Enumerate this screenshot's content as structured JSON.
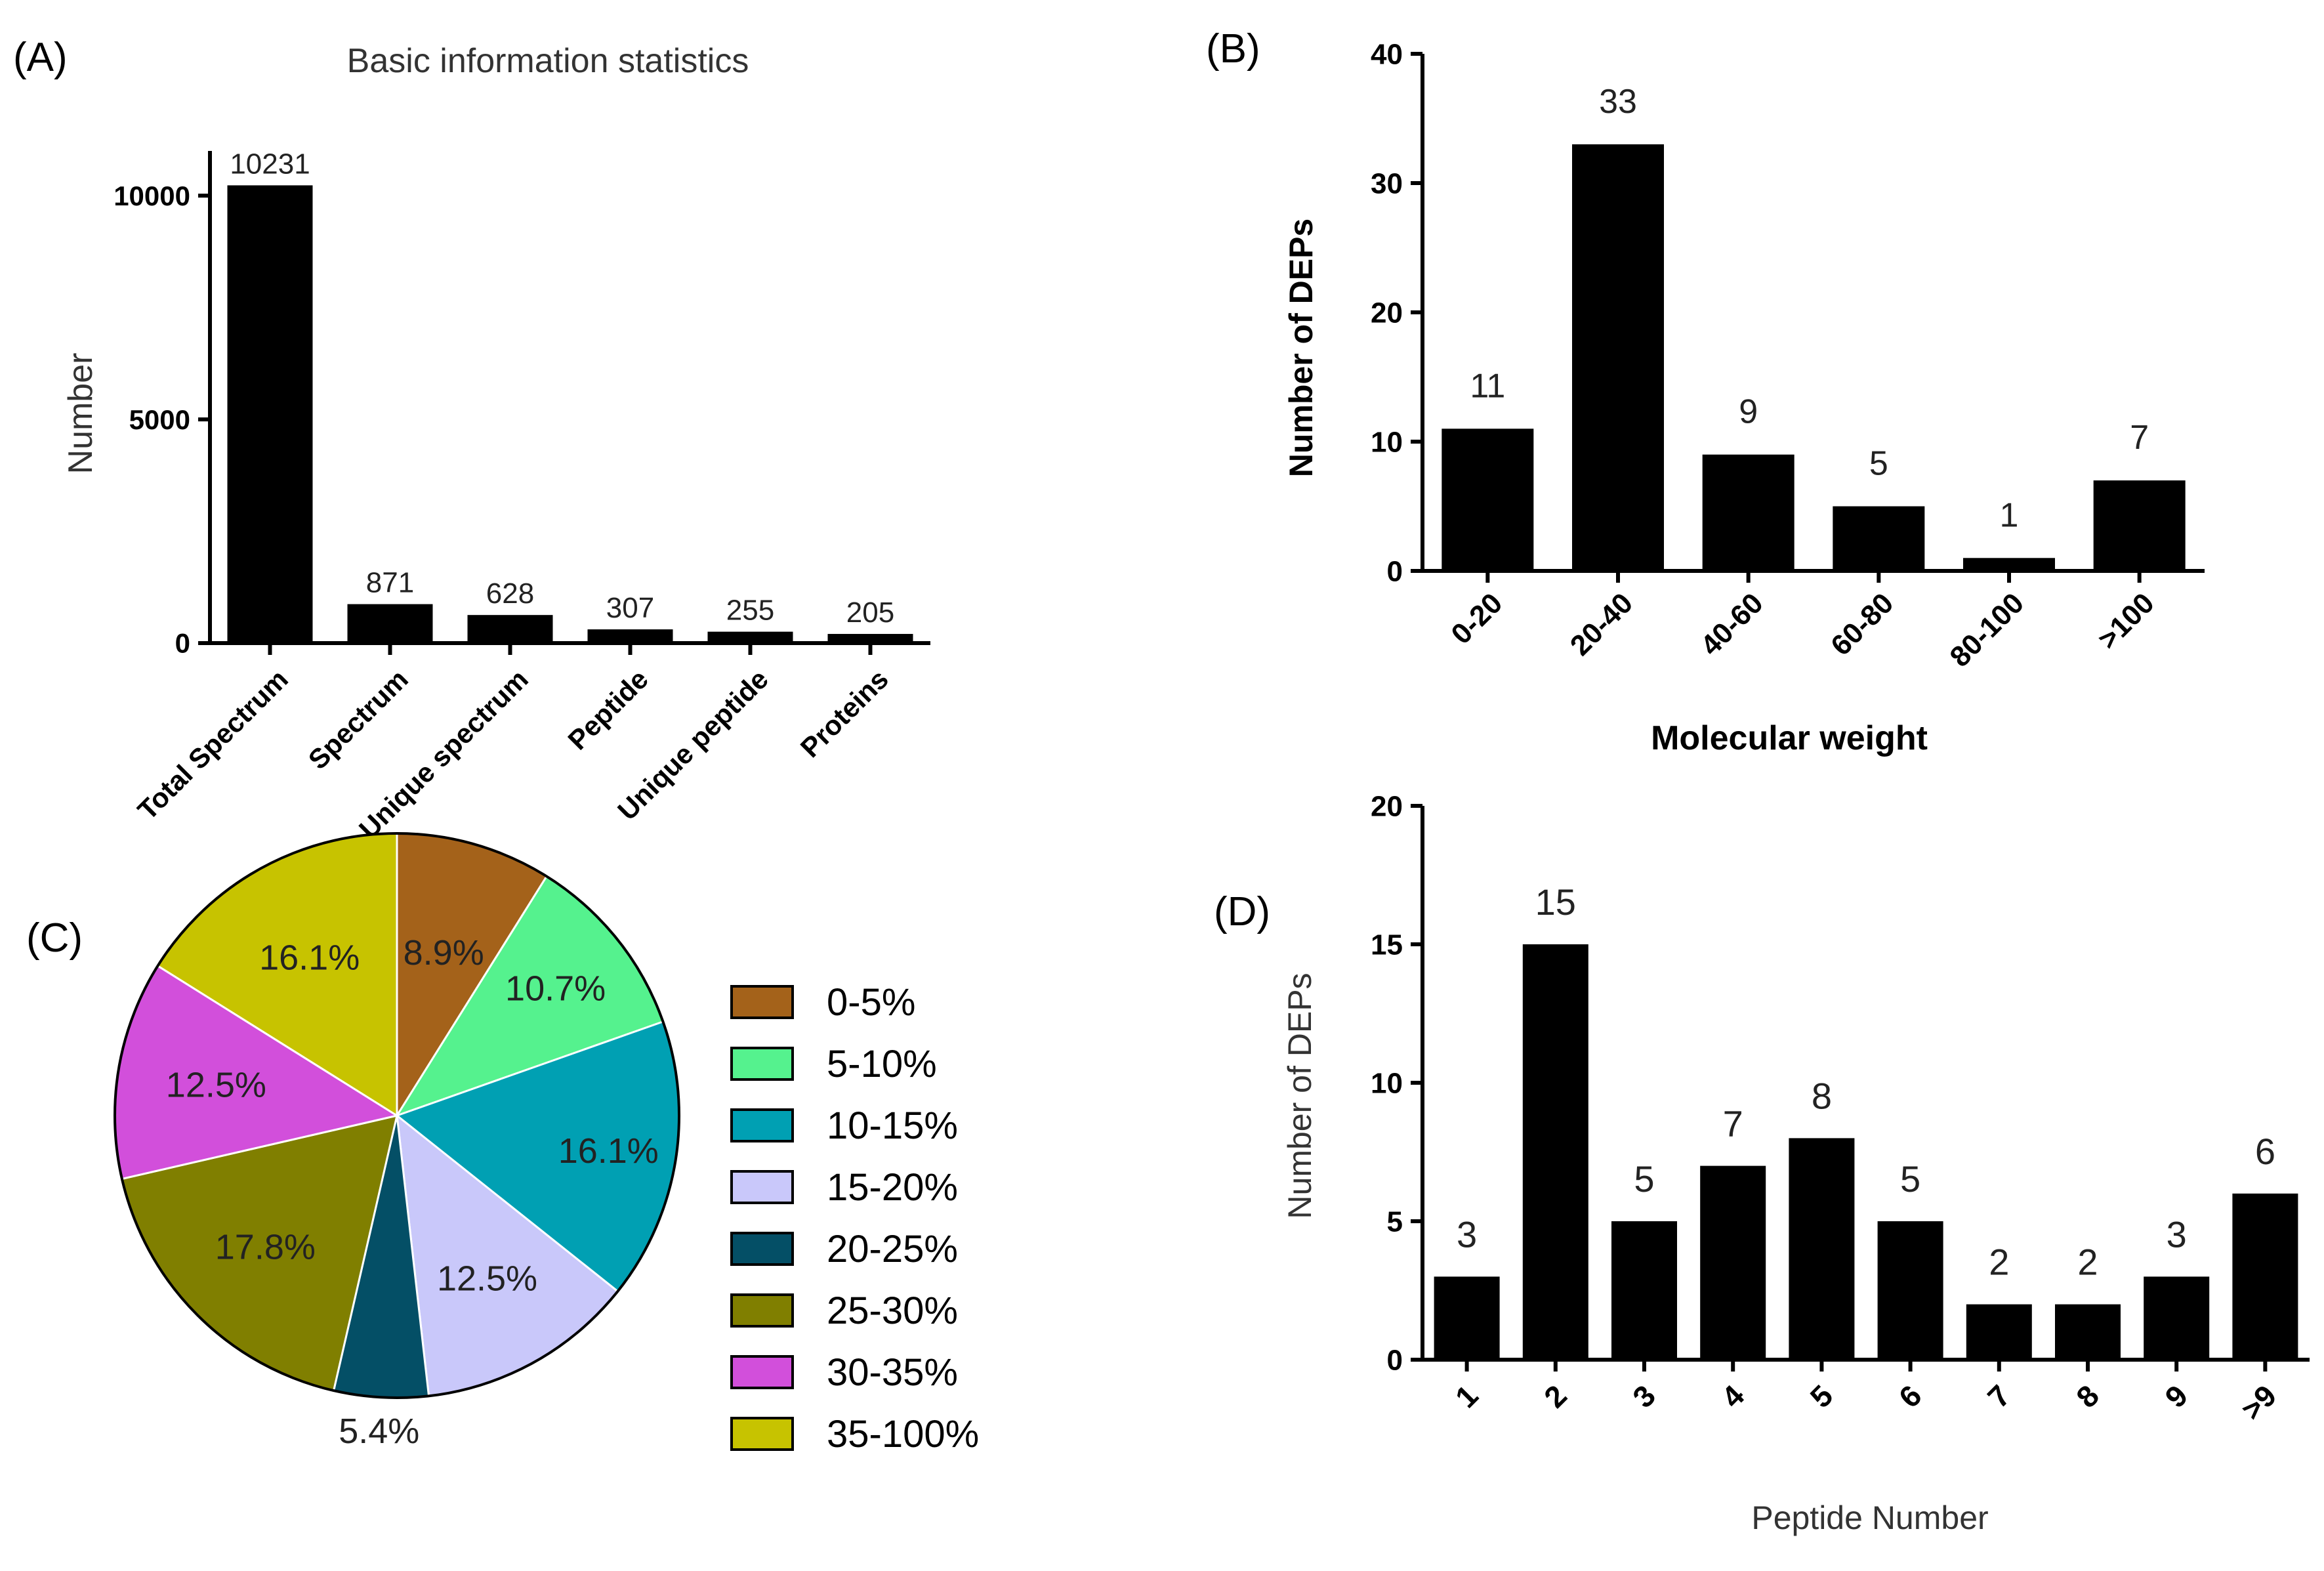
{
  "panels": {
    "a": {
      "label": "(A)"
    },
    "b": {
      "label": "(B)"
    },
    "c": {
      "label": "(C)"
    },
    "d": {
      "label": "(D)"
    }
  },
  "chart_data": [
    {
      "id": "a",
      "type": "bar",
      "title": "Basic information statistics",
      "xlabel": "",
      "ylabel": "Number",
      "categories": [
        "Total Spectrum",
        "Spectrum",
        "Unique spectrum",
        "Peptide",
        "Unique peptide",
        "Proteins"
      ],
      "values": [
        10231,
        871,
        628,
        307,
        255,
        205
      ],
      "data_labels": [
        "10231",
        "871",
        "628",
        "307",
        "255",
        "205"
      ],
      "ylim": [
        0,
        11000
      ],
      "yticks": [
        0,
        5000,
        10000
      ],
      "ytick_labels": [
        "0",
        "5000",
        "10000"
      ]
    },
    {
      "id": "b",
      "type": "bar",
      "title": "",
      "xlabel": "Molecular weight",
      "ylabel": "Number of DEPs",
      "categories": [
        "0-20",
        "20-40",
        "40-60",
        "60-80",
        "80-100",
        ">100"
      ],
      "values": [
        11,
        33,
        9,
        5,
        1,
        7
      ],
      "data_labels": [
        "11",
        "33",
        "9",
        "5",
        "1",
        "7"
      ],
      "ylim": [
        0,
        40
      ],
      "yticks": [
        0,
        10,
        20,
        30,
        40
      ],
      "ytick_labels": [
        "0",
        "10",
        "20",
        "30",
        "40"
      ]
    },
    {
      "id": "c",
      "type": "pie",
      "title": "",
      "categories": [
        "0-5%",
        "5-10%",
        "10-15%",
        "15-20%",
        "20-25%",
        "25-30%",
        "30-35%",
        "35-100%"
      ],
      "values": [
        8.9,
        10.7,
        16.1,
        12.5,
        5.4,
        17.8,
        12.5,
        16.1
      ],
      "slice_labels": [
        "8.9%",
        "10.7%",
        "16.1%",
        "12.5%",
        "5.4%",
        "17.8%",
        "12.5%",
        "16.1%"
      ],
      "colors": [
        "#A4621A",
        "#55F28E",
        "#00A0B3",
        "#C9C8FA",
        "#044F66",
        "#807F00",
        "#D24FDB",
        "#C7C300"
      ],
      "legend": "right"
    },
    {
      "id": "d",
      "type": "bar",
      "title": "",
      "xlabel": "Peptide Number",
      "ylabel": "Number of DEPs",
      "categories": [
        "1",
        "2",
        "3",
        "4",
        "5",
        "6",
        "7",
        "8",
        "9",
        ">9"
      ],
      "values": [
        3,
        15,
        5,
        7,
        8,
        5,
        2,
        2,
        3,
        6
      ],
      "data_labels": [
        "3",
        "15",
        "5",
        "7",
        "8",
        "5",
        "2",
        "2",
        "3",
        "6"
      ],
      "ylim": [
        0,
        20
      ],
      "yticks": [
        0,
        5,
        10,
        15,
        20
      ],
      "ytick_labels": [
        "0",
        "5",
        "10",
        "15",
        "20"
      ]
    }
  ]
}
